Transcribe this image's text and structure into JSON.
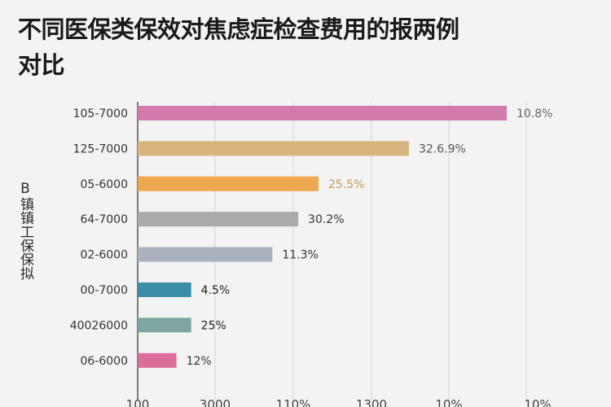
{
  "chart_data": {
    "type": "bar",
    "orientation": "horizontal",
    "title": "不同医保类保效对焦虑症检查费用的报两例对比",
    "ylabel": "B镇镇工保保拟",
    "xlabel": "",
    "categories": [
      "105-7000",
      "125-7000",
      "05-6000",
      "64-7000",
      "02-6000",
      "00-7000",
      "40026000",
      "06-6000"
    ],
    "values": [
      100,
      73.5,
      49,
      43.5,
      36.5,
      14.5,
      14.5,
      10.5
    ],
    "value_labels": [
      "10.8%",
      "32.6.9%",
      "25.5%",
      "30.2%",
      "11.3%",
      "4.5%",
      "25%",
      "12%"
    ],
    "colors": [
      "#d27aab",
      "#d9b47e",
      "#eea850",
      "#acaaa8",
      "#aab0bc",
      "#3c8ea6",
      "#7ea5a0",
      "#db6d9b"
    ],
    "value_label_colors": [
      "#666666",
      "#555555",
      "#c09a55",
      "#333333",
      "#333333",
      "#222222",
      "#222222",
      "#333333"
    ],
    "xtick_labels": [
      "100",
      "3000",
      "110%",
      "1300",
      "10%",
      "10%"
    ],
    "xlim": [
      0,
      100
    ],
    "grid": "vertical"
  }
}
